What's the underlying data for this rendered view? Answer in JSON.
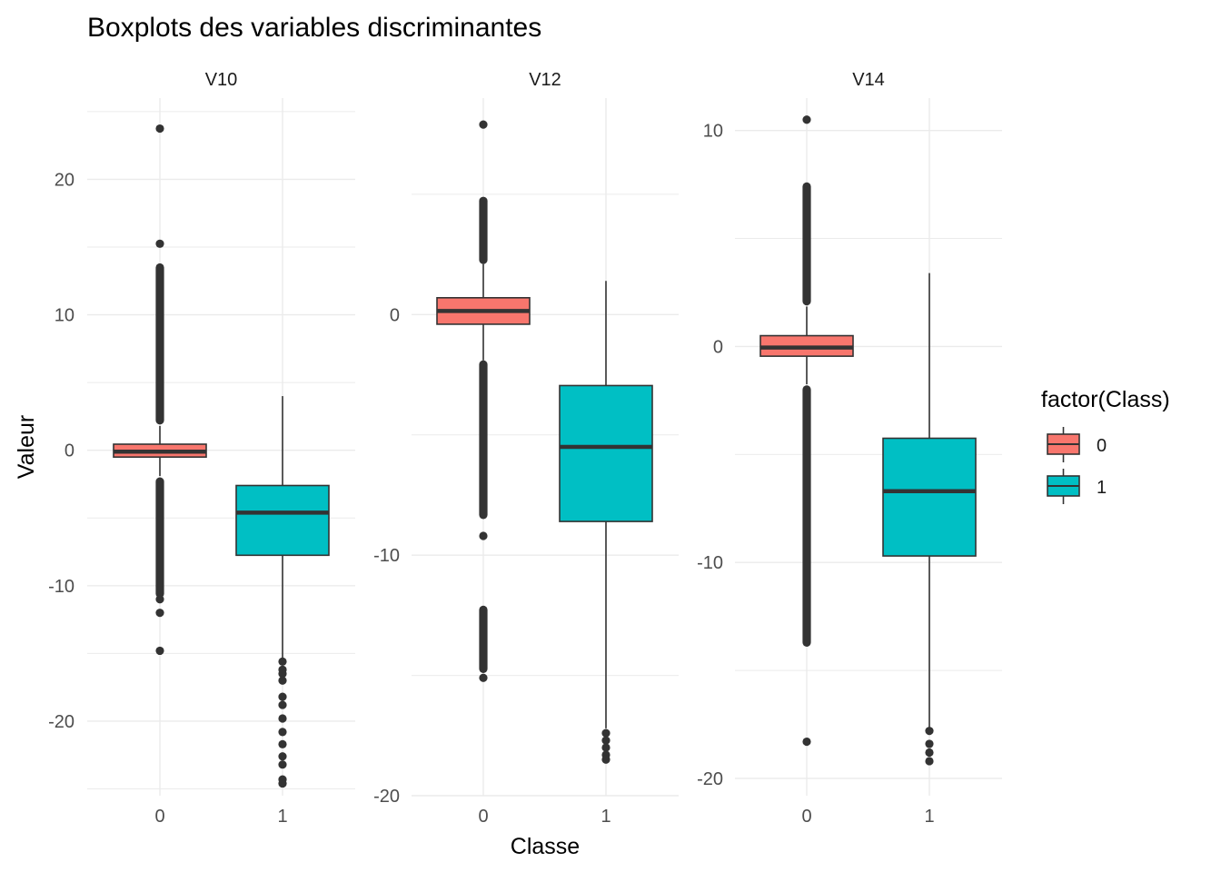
{
  "chart_data": {
    "type": "boxplot",
    "title": "Boxplots des variables discriminantes",
    "xlabel": "Classe",
    "ylabel": "Valeur",
    "categories": [
      "0",
      "1"
    ],
    "legend": {
      "title": "factor(Class)",
      "position": "right",
      "items": [
        {
          "label": "0",
          "color": "#F8766D"
        },
        {
          "label": "1",
          "color": "#00BFC4"
        }
      ]
    },
    "colors": {
      "class_0": "#F8766D",
      "class_1": "#00BFC4",
      "grid": "#EBEBEB",
      "box_line": "#333333"
    },
    "grid": true,
    "facets": [
      {
        "name": "V10",
        "ylim": [
          -25.5,
          26
        ],
        "yticks": [
          -20,
          -10,
          0,
          10,
          20
        ],
        "boxes": [
          {
            "class": "0",
            "q1": -0.5,
            "median": -0.1,
            "q3": 0.45,
            "whisker_low": -1.9,
            "whisker_high": 1.8,
            "outliers": [
              23.75,
              15.25,
              -11.0,
              -12.0,
              -14.8
            ],
            "outlier_ranges": [
              [
                1.9,
                13.8
              ],
              [
                -10.9,
                -2.0
              ]
            ]
          },
          {
            "class": "1",
            "q1": -7.75,
            "median": -4.6,
            "q3": -2.6,
            "whisker_low": -15.5,
            "whisker_high": 4.0,
            "outliers": [
              -15.6,
              -16.2,
              -16.5,
              -17.0,
              -18.2,
              -18.8,
              -19.8,
              -20.8,
              -21.7,
              -22.6,
              -23.2,
              -24.3,
              -24.6
            ],
            "outlier_ranges": []
          }
        ]
      },
      {
        "name": "V12",
        "ylim": [
          -20,
          9
        ],
        "yticks": [
          -20,
          -10,
          0
        ],
        "boxes": [
          {
            "class": "0",
            "q1": -0.4,
            "median": 0.15,
            "q3": 0.7,
            "whisker_low": -1.9,
            "whisker_high": 2.1,
            "outliers": [
              7.9,
              -9.2,
              -15.1
            ],
            "outlier_ranges": [
              [
                2.1,
                4.9
              ],
              [
                -8.5,
                -1.9
              ],
              [
                -14.9,
                -12.1
              ]
            ]
          },
          {
            "class": "1",
            "q1": -8.6,
            "median": -5.5,
            "q3": -2.95,
            "whisker_low": -17.2,
            "whisker_high": 1.4,
            "outliers": [
              -17.4,
              -17.7,
              -18.0,
              -18.3,
              -18.5
            ],
            "outlier_ranges": []
          }
        ]
      },
      {
        "name": "V14",
        "ylim": [
          -20.8,
          11.5
        ],
        "yticks": [
          -20,
          -10,
          0,
          10
        ],
        "boxes": [
          {
            "class": "0",
            "q1": -0.45,
            "median": -0.05,
            "q3": 0.5,
            "whisker_low": -1.75,
            "whisker_high": 1.85,
            "outliers": [
              10.5,
              -18.3
            ],
            "outlier_ranges": [
              [
                1.9,
                7.6
              ],
              [
                -13.9,
                -1.8
              ]
            ]
          },
          {
            "class": "1",
            "q1": -9.7,
            "median": -6.7,
            "q3": -4.25,
            "whisker_low": -17.7,
            "whisker_high": 3.4,
            "outliers": [
              -17.8,
              -18.4,
              -18.8,
              -19.2
            ],
            "outlier_ranges": []
          }
        ]
      }
    ]
  }
}
